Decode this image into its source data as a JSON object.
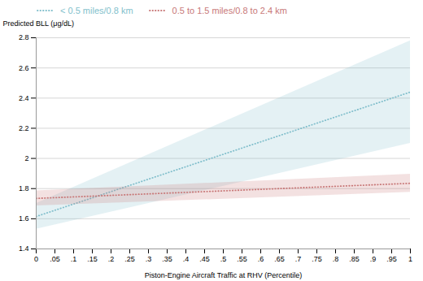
{
  "chart_data": {
    "type": "line",
    "xlabel": "Piston-Engine Aircraft Traffic at RHV (Percentile)",
    "ylabel": "Predicted BLL (μg/dL)",
    "x": [
      0,
      1
    ],
    "series": [
      {
        "name": "< 0.5 miles/0.8 km",
        "color": "#82bfcc",
        "line_style": "dotted",
        "values": [
          1.615,
          2.44
        ],
        "ci_lo": [
          1.53,
          2.1
        ],
        "ci_hi": [
          1.7,
          2.78
        ]
      },
      {
        "name": "0.5 to 1.5 miles/0.8 to 2.4 km",
        "color": "#c87878",
        "line_style": "dotted",
        "values": [
          1.735,
          1.835
        ],
        "ci_lo": [
          1.685,
          1.775
        ],
        "ci_hi": [
          1.785,
          1.895
        ]
      }
    ],
    "xlim": [
      0,
      1
    ],
    "xticks": [
      0,
      {
        "value": 0.05,
        "label": ".05"
      },
      {
        "value": 0.1,
        "label": ".1"
      },
      {
        "value": 0.15,
        "label": ".15"
      },
      {
        "value": 0.2,
        "label": ".2"
      },
      {
        "value": 0.25,
        "label": ".25"
      },
      {
        "value": 0.3,
        "label": ".3"
      },
      {
        "value": 0.35,
        "label": ".35"
      },
      {
        "value": 0.4,
        "label": ".4"
      },
      {
        "value": 0.45,
        "label": ".45"
      },
      {
        "value": 0.5,
        "label": ".5"
      },
      {
        "value": 0.55,
        "label": ".55"
      },
      {
        "value": 0.6,
        "label": ".6"
      },
      {
        "value": 0.65,
        "label": ".65"
      },
      {
        "value": 0.7,
        "label": ".7"
      },
      {
        "value": 0.75,
        "label": ".75"
      },
      {
        "value": 0.8,
        "label": ".8"
      },
      {
        "value": 0.85,
        "label": ".85"
      },
      {
        "value": 0.9,
        "label": ".9"
      },
      {
        "value": 0.95,
        "label": ".95"
      },
      1
    ],
    "ylim": [
      1.4,
      2.8
    ],
    "yticks": [
      1.4,
      1.6,
      1.8,
      2,
      2.2,
      2.4,
      2.6,
      2.8
    ],
    "grid": true,
    "legend": "upper left"
  }
}
